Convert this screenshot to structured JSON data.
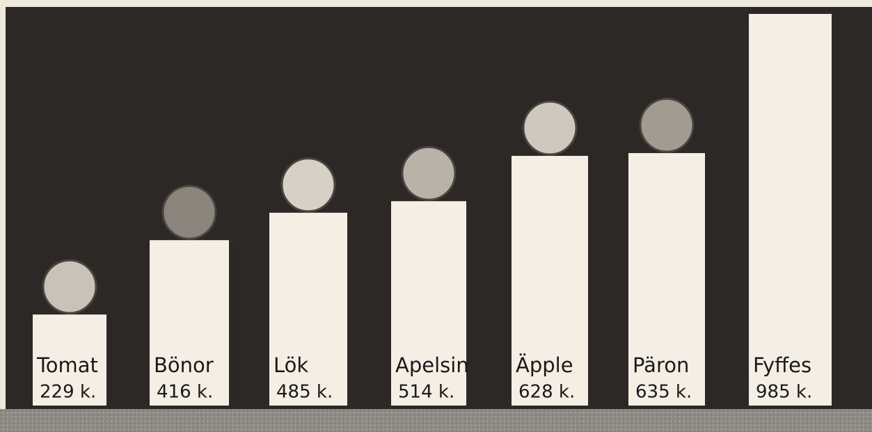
{
  "chart_data": {
    "type": "bar",
    "categories": [
      "Tomat",
      "Bönor",
      "Lök",
      "Apelsin",
      "Äpple",
      "Päron",
      "Fyffes"
    ],
    "values": [
      229,
      416,
      485,
      514,
      628,
      635,
      985
    ],
    "value_labels": [
      "229 k.",
      "416 k.",
      "485 k.",
      "514 k.",
      "628 k.",
      "635 k.",
      "985 k."
    ],
    "color": "#f4eee5"
  }
}
